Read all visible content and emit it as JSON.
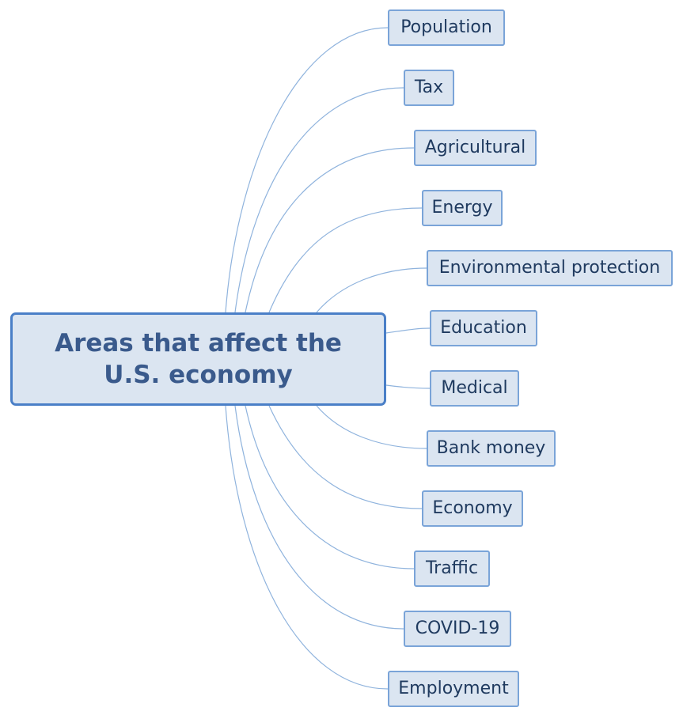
{
  "central_topic": "Areas that affect the U.S. economy",
  "branches": [
    "Population",
    "Tax",
    "Agricultural",
    "Energy",
    "Environmental protection",
    "Education",
    "Medical",
    "Bank money",
    "Economy",
    "Traffic",
    "COVID-19",
    "Employment"
  ],
  "colors": {
    "central_fill": "#dbe5f1",
    "central_border": "#4a7fc7",
    "central_text": "#3a5a8c",
    "node_fill": "#dbe5f1",
    "node_border": "#7aa4d8",
    "node_text": "#1f3a5f",
    "connector": "#8fb3dd"
  }
}
